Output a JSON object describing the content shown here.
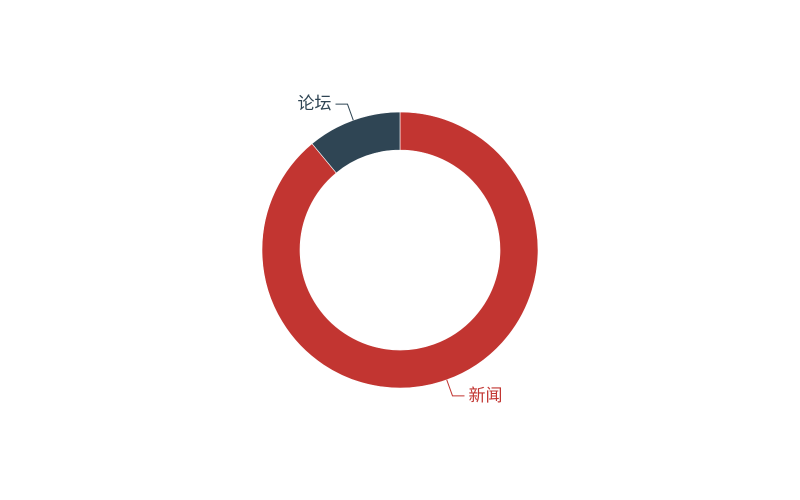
{
  "chart_data": {
    "type": "pie",
    "variant": "donut",
    "legend": "none",
    "series": [
      {
        "name": "",
        "slices": [
          {
            "label": "新闻",
            "value": 89,
            "color": "#c23531"
          },
          {
            "label": "论坛",
            "value": 11,
            "color": "#2f4554"
          }
        ]
      }
    ]
  }
}
